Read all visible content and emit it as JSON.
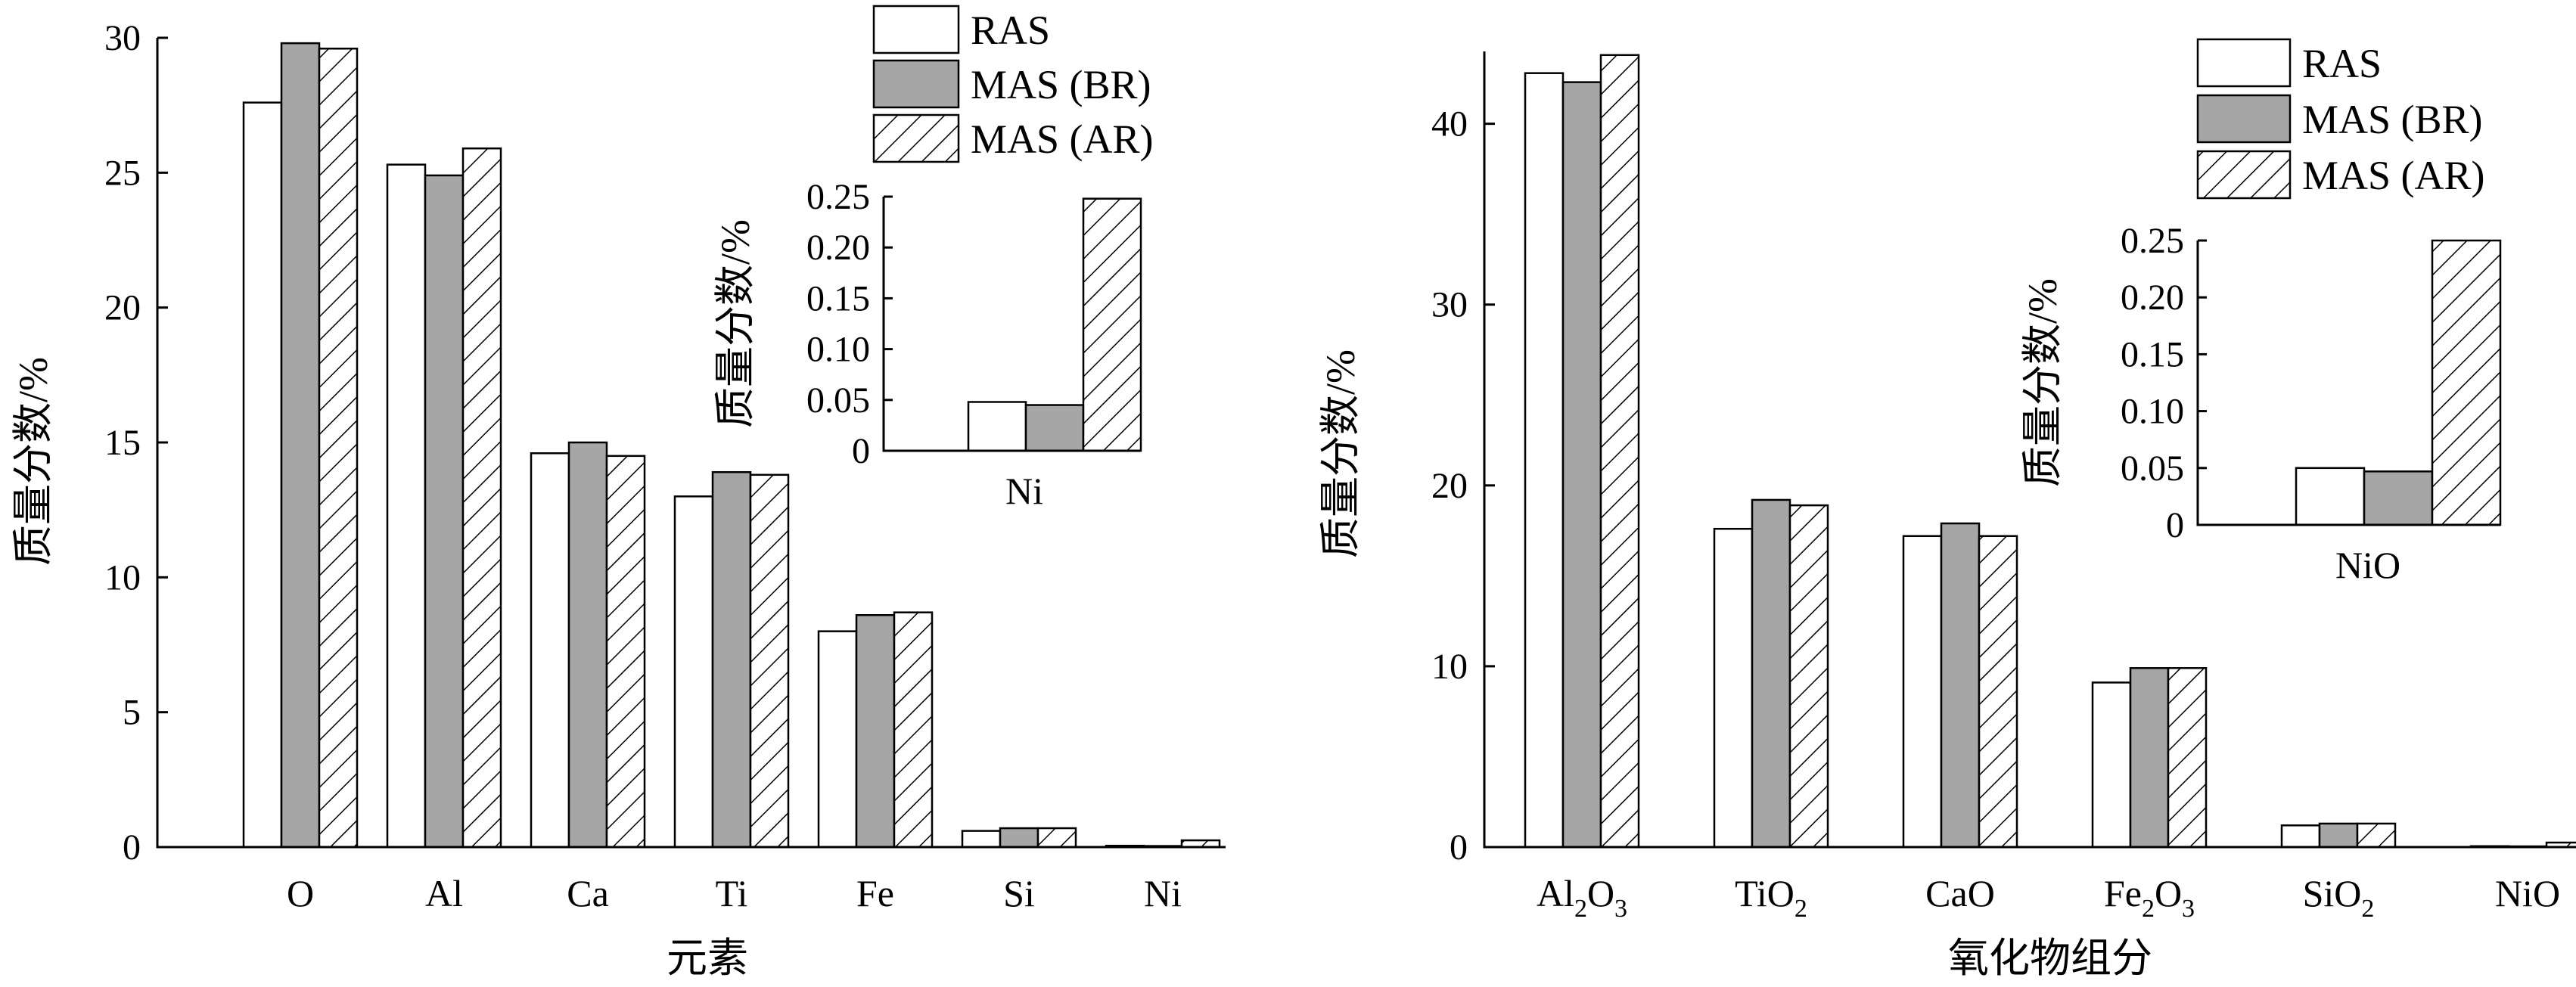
{
  "chart_data": [
    {
      "type": "bar",
      "panel": "left",
      "categories": [
        "O",
        "Al",
        "Ca",
        "Ti",
        "Fe",
        "Si",
        "Ni"
      ],
      "series": [
        {
          "name": "RAS",
          "values": [
            27.6,
            25.3,
            14.6,
            13.0,
            8.0,
            0.6,
            0.05
          ]
        },
        {
          "name": "MAS (BR)",
          "values": [
            29.8,
            24.9,
            15.0,
            13.9,
            8.6,
            0.7,
            0.04
          ]
        },
        {
          "name": "MAS (AR)",
          "values": [
            29.6,
            25.9,
            14.5,
            13.8,
            8.7,
            0.7,
            0.25
          ]
        }
      ],
      "xlabel": "元素",
      "ylabel": "质量分数/%",
      "ylim": [
        0,
        30
      ],
      "yticks": [
        "0",
        "5",
        "10",
        "15",
        "20",
        "25",
        "30"
      ],
      "legend_position": "top-right",
      "grid": false,
      "inset": {
        "categories": [
          "Ni"
        ],
        "series": [
          {
            "name": "RAS",
            "values": [
              0.048
            ]
          },
          {
            "name": "MAS (BR)",
            "values": [
              0.045
            ]
          },
          {
            "name": "MAS (AR)",
            "values": [
              0.248
            ]
          }
        ],
        "ylabel": "质量分数/%",
        "ylim": [
          0,
          0.25
        ],
        "yticks": [
          "0",
          "0.05",
          "0.10",
          "0.15",
          "0.20",
          "0.25"
        ]
      }
    },
    {
      "type": "bar",
      "panel": "right",
      "categories": [
        "Al2O3",
        "TiO2",
        "CaO",
        "Fe2O3",
        "SiO2",
        "NiO"
      ],
      "category_labels": [
        {
          "main": "Al",
          "sub": "2",
          "main2": "O",
          "sub2": "3"
        },
        {
          "main": "TiO",
          "sub": "2",
          "main2": "",
          "sub2": ""
        },
        {
          "main": "CaO",
          "sub": "",
          "main2": "",
          "sub2": ""
        },
        {
          "main": "Fe",
          "sub": "2",
          "main2": "O",
          "sub2": "3"
        },
        {
          "main": "SiO",
          "sub": "2",
          "main2": "",
          "sub2": ""
        },
        {
          "main": "NiO",
          "sub": "",
          "main2": "",
          "sub2": ""
        }
      ],
      "series": [
        {
          "name": "RAS",
          "values": [
            42.8,
            17.6,
            17.2,
            9.1,
            1.2,
            0.05
          ]
        },
        {
          "name": "MAS (BR)",
          "values": [
            42.3,
            19.2,
            17.9,
            9.9,
            1.3,
            0.04
          ]
        },
        {
          "name": "MAS (AR)",
          "values": [
            43.8,
            18.9,
            17.2,
            9.9,
            1.3,
            0.25
          ]
        }
      ],
      "xlabel": "氧化物组分",
      "ylabel": "质量分数/%",
      "ylim": [
        0,
        44
      ],
      "yticks": [
        "0",
        "10",
        "20",
        "30",
        "40"
      ],
      "ytick_values": [
        0,
        10,
        20,
        30,
        40
      ],
      "legend_position": "top-right",
      "grid": false,
      "inset": {
        "categories": [
          "NiO"
        ],
        "series": [
          {
            "name": "RAS",
            "values": [
              0.05
            ]
          },
          {
            "name": "MAS (BR)",
            "values": [
              0.047
            ]
          },
          {
            "name": "MAS (AR)",
            "values": [
              0.253
            ]
          }
        ],
        "ylabel": "质量分数/%",
        "ylim": [
          0,
          0.25
        ],
        "yticks": [
          "0",
          "0.05",
          "0.10",
          "0.15",
          "0.20",
          "0.25"
        ]
      }
    }
  ],
  "colors": {
    "ras": "#ffffff",
    "mas_br": "#a6a6a6",
    "mas_ar_hatch": "#000000"
  }
}
